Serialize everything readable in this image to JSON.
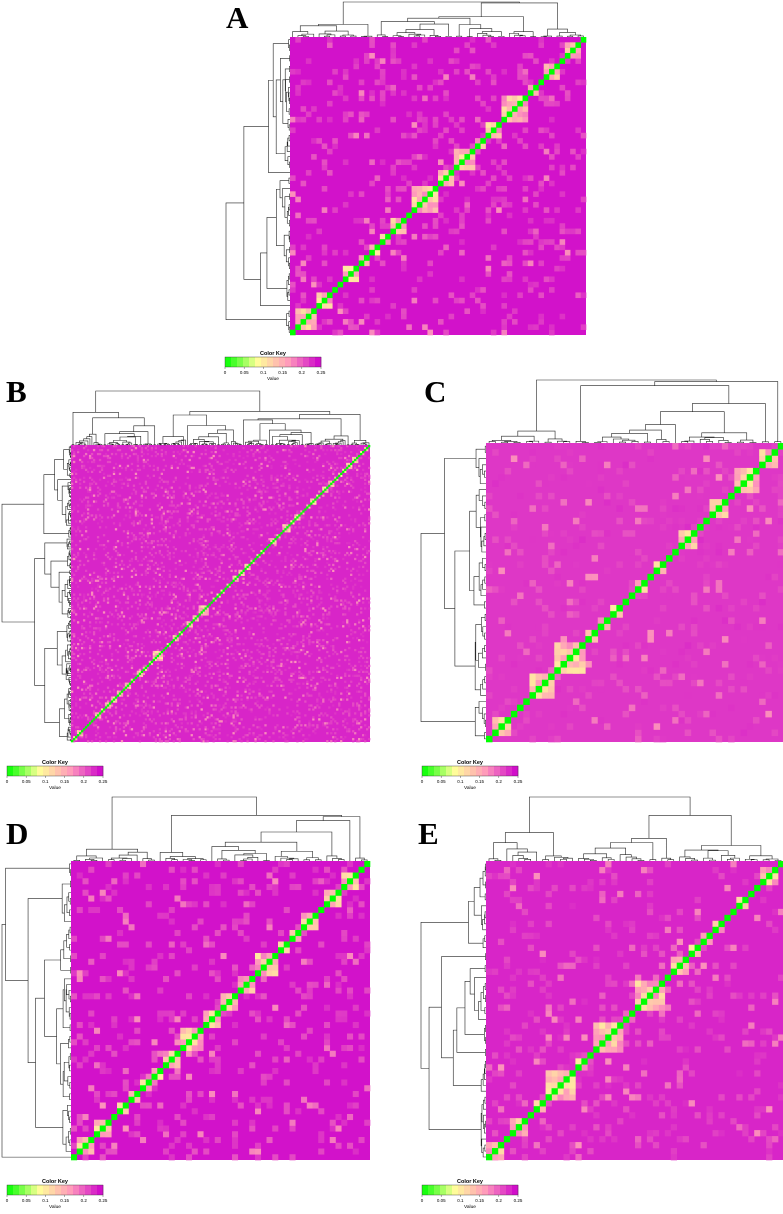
{
  "figure": {
    "panels": [
      "A",
      "B",
      "C",
      "D",
      "E"
    ]
  },
  "chart_data": [
    {
      "type": "heatmap",
      "panel": "A",
      "title": "",
      "n": 56,
      "diagonal_value": 0,
      "background_value": 0.24,
      "dendrogram": "row and column",
      "color_key": {
        "title": "Color Key",
        "label": "Value",
        "ticks": [
          "0",
          "0.05",
          "0.1",
          "0.15",
          "0.2",
          "0.25"
        ],
        "range": [
          0,
          0.25
        ],
        "colors": [
          "#00ff00",
          "#ffff99",
          "#ff99bb",
          "#cc00cc"
        ]
      },
      "seed": 11
    },
    {
      "type": "heatmap",
      "panel": "B",
      "title": "",
      "n": 150,
      "diagonal_value": 0,
      "background_value": 0.23,
      "dendrogram": "row and column",
      "color_key": {
        "title": "Color Key",
        "label": "Value",
        "ticks": [
          "0",
          "0.05",
          "0.1",
          "0.15",
          "0.2",
          "0.25"
        ],
        "range": [
          0,
          0.25
        ],
        "colors": [
          "#00ff00",
          "#ffff99",
          "#ff99bb",
          "#cc00cc"
        ]
      },
      "seed": 23
    },
    {
      "type": "heatmap",
      "panel": "C",
      "title": "",
      "n": 48,
      "diagonal_value": 0,
      "background_value": 0.22,
      "dendrogram": "row and column",
      "color_key": {
        "title": "Color Key",
        "label": "Value",
        "ticks": [
          "0",
          "0.05",
          "0.1",
          "0.15",
          "0.2",
          "0.25"
        ],
        "range": [
          0,
          0.25
        ],
        "colors": [
          "#00ff00",
          "#ffff99",
          "#ff99bb",
          "#cc00cc"
        ]
      },
      "seed": 37
    },
    {
      "type": "heatmap",
      "panel": "D",
      "title": "",
      "n": 52,
      "diagonal_value": 0,
      "background_value": 0.24,
      "dendrogram": "row and column",
      "color_key": {
        "title": "Color Key",
        "label": "Value",
        "ticks": [
          "0",
          "0.05",
          "0.1",
          "0.15",
          "0.2",
          "0.25"
        ],
        "range": [
          0,
          0.25
        ],
        "colors": [
          "#00ff00",
          "#ffff99",
          "#ff99bb",
          "#cc00cc"
        ]
      },
      "seed": 41
    },
    {
      "type": "heatmap",
      "panel": "E",
      "title": "",
      "n": 50,
      "diagonal_value": 0,
      "background_value": 0.23,
      "dendrogram": "row and column",
      "color_key": {
        "title": "Color Key",
        "label": "Value",
        "ticks": [
          "0",
          "0.05",
          "0.1",
          "0.15",
          "0.2",
          "0.25"
        ],
        "range": [
          0,
          0.25
        ],
        "colors": [
          "#00ff00",
          "#ffff99",
          "#ff99bb",
          "#cc00cc"
        ]
      },
      "seed": 53
    }
  ]
}
